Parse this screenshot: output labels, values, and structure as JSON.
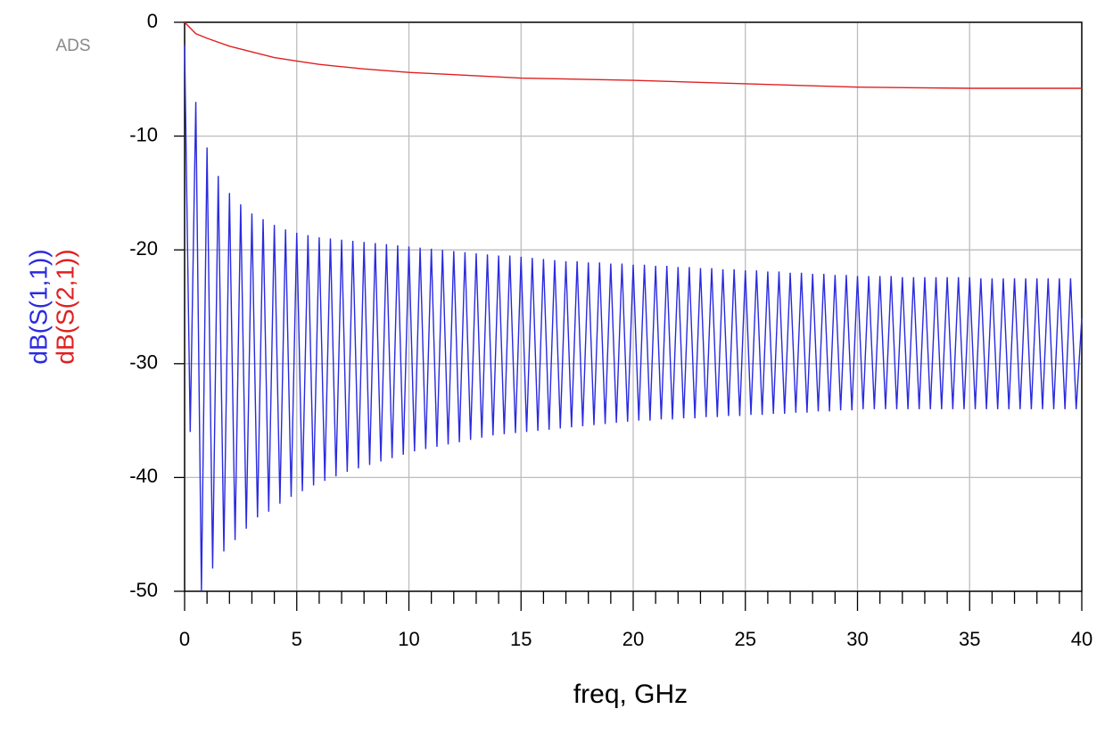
{
  "chart_data": {
    "type": "line",
    "badge": "ADS",
    "xlabel": "freq, GHz",
    "xlim": [
      0,
      40
    ],
    "ylim": [
      -50,
      0
    ],
    "xticks": [
      0,
      5,
      10,
      15,
      20,
      25,
      30,
      35,
      40
    ],
    "xminorticks": [
      1,
      2,
      3,
      4,
      6,
      7,
      8,
      9,
      11,
      12,
      13,
      14,
      16,
      17,
      18,
      19,
      21,
      22,
      23,
      24,
      26,
      27,
      28,
      29,
      31,
      32,
      33,
      34,
      36,
      37,
      38,
      39
    ],
    "yticks": [
      0,
      -10,
      -20,
      -30,
      -40,
      -50
    ],
    "grid": true,
    "series": [
      {
        "name": "dB(S(1,1))",
        "color": "#2a2ae0",
        "x": [
          0,
          0.25,
          0.5,
          0.75,
          1,
          1.25,
          1.5,
          1.75,
          2,
          2.25,
          2.5,
          2.75,
          3,
          3.25,
          3.5,
          3.75,
          4,
          4.25,
          4.5,
          4.75,
          5,
          5.25,
          5.5,
          5.75,
          6,
          6.25,
          6.5,
          6.75,
          7,
          7.25,
          7.5,
          7.75,
          8,
          8.25,
          8.5,
          8.75,
          9,
          9.25,
          9.5,
          9.75,
          10,
          10.25,
          10.5,
          10.75,
          11,
          11.25,
          11.5,
          11.75,
          12,
          12.25,
          12.5,
          12.75,
          13,
          13.25,
          13.5,
          13.75,
          14,
          14.25,
          14.5,
          14.75,
          15,
          15.25,
          15.5,
          15.75,
          16,
          16.25,
          16.5,
          16.75,
          17,
          17.25,
          17.5,
          17.75,
          18,
          18.25,
          18.5,
          18.75,
          19,
          19.25,
          19.5,
          19.75,
          20,
          20.25,
          20.5,
          20.75,
          21,
          21.25,
          21.5,
          21.75,
          22,
          22.25,
          22.5,
          22.75,
          23,
          23.25,
          23.5,
          23.75,
          24,
          24.25,
          24.5,
          24.75,
          25,
          25.25,
          25.5,
          25.75,
          26,
          26.25,
          26.5,
          26.75,
          27,
          27.25,
          27.5,
          27.75,
          28,
          28.25,
          28.5,
          28.75,
          29,
          29.25,
          29.5,
          29.75,
          30,
          30.25,
          30.5,
          30.75,
          31,
          31.25,
          31.5,
          31.75,
          32,
          32.25,
          32.5,
          32.75,
          33,
          33.25,
          33.5,
          33.75,
          34,
          34.25,
          34.5,
          34.75,
          35,
          35.25,
          35.5,
          35.75,
          36,
          36.25,
          36.5,
          36.75,
          37,
          37.25,
          37.5,
          37.75,
          38,
          38.25,
          38.5,
          38.75,
          39,
          39.25,
          39.5,
          39.75,
          40
        ],
        "values": [
          -2,
          -36,
          -7,
          -50,
          -11,
          -48,
          -13.5,
          -46.5,
          -15,
          -45.5,
          -16,
          -44.5,
          -16.8,
          -43.5,
          -17.3,
          -43,
          -17.8,
          -42.3,
          -18.2,
          -41.7,
          -18.5,
          -41.2,
          -18.7,
          -40.7,
          -18.9,
          -40.3,
          -19,
          -39.9,
          -19.1,
          -39.5,
          -19.2,
          -39.2,
          -19.3,
          -38.9,
          -19.4,
          -38.6,
          -19.5,
          -38.3,
          -19.6,
          -38,
          -19.7,
          -37.7,
          -19.8,
          -37.5,
          -19.9,
          -37.3,
          -20,
          -37.1,
          -20.1,
          -36.9,
          -20.2,
          -36.7,
          -20.3,
          -36.5,
          -20.4,
          -36.3,
          -20.5,
          -36.2,
          -20.5,
          -36.1,
          -20.6,
          -36,
          -20.7,
          -35.9,
          -20.8,
          -35.8,
          -20.9,
          -35.7,
          -21,
          -35.6,
          -21,
          -35.5,
          -21.1,
          -35.4,
          -21.1,
          -35.3,
          -21.2,
          -35.2,
          -21.2,
          -35.1,
          -21.3,
          -35,
          -21.3,
          -35,
          -21.4,
          -34.9,
          -21.4,
          -34.9,
          -21.5,
          -34.8,
          -21.5,
          -34.8,
          -21.6,
          -34.7,
          -21.6,
          -34.7,
          -21.7,
          -34.6,
          -21.7,
          -34.6,
          -21.8,
          -34.5,
          -21.8,
          -34.5,
          -21.9,
          -34.4,
          -21.9,
          -34.4,
          -22,
          -34.3,
          -22,
          -34.3,
          -22.1,
          -34.2,
          -22.1,
          -34.2,
          -22.2,
          -34.1,
          -22.2,
          -34.1,
          -22.3,
          -34,
          -22.3,
          -34,
          -22.3,
          -34,
          -22.3,
          -34,
          -22.4,
          -34,
          -22.4,
          -34,
          -22.4,
          -34,
          -22.4,
          -34,
          -22.4,
          -34,
          -22.4,
          -34,
          -22.4,
          -34,
          -22.5,
          -34,
          -22.5,
          -34,
          -22.5,
          -34,
          -22.5,
          -34,
          -22.5,
          -34,
          -22.5,
          -34,
          -22.5,
          -34,
          -22.5,
          -34,
          -22.5,
          -34,
          -26
        ]
      },
      {
        "name": "dB(S(2,1))",
        "color": "#e02020",
        "x": [
          0,
          0.5,
          1,
          2,
          3,
          4,
          5,
          6,
          8,
          10,
          12,
          15,
          20,
          25,
          30,
          35,
          40
        ],
        "values": [
          0,
          -1,
          -1.4,
          -2.1,
          -2.6,
          -3.1,
          -3.4,
          -3.7,
          -4.1,
          -4.4,
          -4.6,
          -4.9,
          -5.1,
          -5.4,
          -5.7,
          -5.8,
          -5.8
        ]
      }
    ]
  }
}
